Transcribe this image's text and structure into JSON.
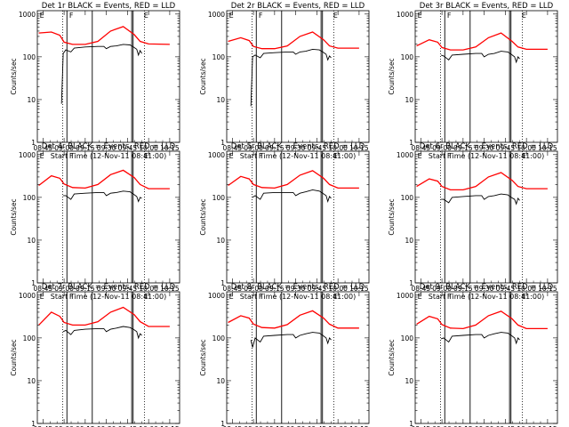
{
  "chart_data": {
    "type": "line",
    "shared": {
      "ylabel": "Counts/sec",
      "xlabel": "Start Time (12-Nov-11 08:41:00)",
      "x_tick_labels": [
        "08:45",
        "09:00",
        "09:15",
        "09:30",
        "09:45",
        "10:00",
        "10:15"
      ],
      "y_tick_labels": [
        "1",
        "10",
        "100",
        "1000"
      ],
      "y_scale": "log",
      "ylim": [
        1,
        1200
      ],
      "xlim": [
        "08:41",
        "10:22"
      ],
      "grid": false,
      "series_colors": {
        "events": "#000000",
        "lld": "#ff0000"
      },
      "markers": [
        {
          "label": "E",
          "time": "08:42"
        },
        {
          "label": "F",
          "time": "09:03"
        },
        {
          "label": "E",
          "time": "09:56"
        }
      ],
      "solid_vlines": [
        "09:02",
        "09:20",
        "09:48",
        "09:49"
      ],
      "dotted_vlines": [
        "08:59",
        "09:57"
      ]
    },
    "panels": [
      {
        "title": "Det 1r BLACK = Events, RED = LLD",
        "lld": [
          [
            8.7,
            360
          ],
          [
            8.85,
            380
          ],
          [
            8.95,
            320
          ],
          [
            9.0,
            220
          ],
          [
            9.1,
            195
          ],
          [
            9.25,
            195
          ],
          [
            9.4,
            230
          ],
          [
            9.55,
            400
          ],
          [
            9.7,
            510
          ],
          [
            9.83,
            330
          ],
          [
            9.9,
            230
          ],
          [
            10.0,
            200
          ],
          [
            10.25,
            195
          ]
        ],
        "events": [
          [
            8.97,
            8
          ],
          [
            8.99,
            120
          ],
          [
            9.02,
            145
          ],
          [
            9.08,
            130
          ],
          [
            9.12,
            160
          ],
          [
            9.25,
            170
          ],
          [
            9.4,
            175
          ],
          [
            9.47,
            175
          ],
          [
            9.5,
            155
          ],
          [
            9.55,
            175
          ],
          [
            9.62,
            180
          ],
          [
            9.7,
            195
          ],
          [
            9.78,
            190
          ],
          [
            9.82,
            170
          ],
          [
            9.86,
            150
          ],
          [
            9.88,
            110
          ],
          [
            9.9,
            140
          ],
          [
            9.92,
            120
          ]
        ]
      },
      {
        "title": "Det 2r BLACK = Events, RED = LLD",
        "lld": [
          [
            8.7,
            230
          ],
          [
            8.85,
            280
          ],
          [
            8.95,
            240
          ],
          [
            9.0,
            175
          ],
          [
            9.1,
            155
          ],
          [
            9.25,
            155
          ],
          [
            9.4,
            180
          ],
          [
            9.55,
            300
          ],
          [
            9.7,
            380
          ],
          [
            9.83,
            250
          ],
          [
            9.9,
            180
          ],
          [
            10.0,
            160
          ],
          [
            10.25,
            160
          ]
        ],
        "events": [
          [
            8.97,
            7
          ],
          [
            8.99,
            100
          ],
          [
            9.02,
            110
          ],
          [
            9.08,
            95
          ],
          [
            9.12,
            120
          ],
          [
            9.25,
            125
          ],
          [
            9.4,
            130
          ],
          [
            9.47,
            130
          ],
          [
            9.5,
            115
          ],
          [
            9.55,
            130
          ],
          [
            9.62,
            135
          ],
          [
            9.7,
            150
          ],
          [
            9.78,
            145
          ],
          [
            9.82,
            130
          ],
          [
            9.86,
            115
          ],
          [
            9.88,
            85
          ],
          [
            9.9,
            105
          ],
          [
            9.92,
            95
          ]
        ]
      },
      {
        "title": "Det 3r BLACK = Events, RED = LLD",
        "lld": [
          [
            8.7,
            180
          ],
          [
            8.85,
            250
          ],
          [
            8.95,
            220
          ],
          [
            9.0,
            165
          ],
          [
            9.1,
            145
          ],
          [
            9.25,
            145
          ],
          [
            9.4,
            170
          ],
          [
            9.55,
            280
          ],
          [
            9.7,
            360
          ],
          [
            9.83,
            230
          ],
          [
            9.9,
            170
          ],
          [
            10.0,
            150
          ],
          [
            10.25,
            150
          ]
        ],
        "events": [
          [
            8.99,
            110
          ],
          [
            9.02,
            105
          ],
          [
            9.08,
            85
          ],
          [
            9.12,
            110
          ],
          [
            9.25,
            115
          ],
          [
            9.4,
            120
          ],
          [
            9.47,
            120
          ],
          [
            9.5,
            100
          ],
          [
            9.55,
            115
          ],
          [
            9.62,
            120
          ],
          [
            9.7,
            135
          ],
          [
            9.78,
            130
          ],
          [
            9.82,
            115
          ],
          [
            9.86,
            100
          ],
          [
            9.88,
            75
          ],
          [
            9.9,
            100
          ],
          [
            9.92,
            90
          ]
        ]
      },
      {
        "title": "Det 4r BLACK = Events, RED = LLD",
        "lld": [
          [
            8.7,
            190
          ],
          [
            8.85,
            320
          ],
          [
            8.95,
            280
          ],
          [
            9.0,
            205
          ],
          [
            9.1,
            170
          ],
          [
            9.25,
            165
          ],
          [
            9.4,
            200
          ],
          [
            9.55,
            340
          ],
          [
            9.7,
            430
          ],
          [
            9.83,
            290
          ],
          [
            9.9,
            200
          ],
          [
            10.0,
            160
          ],
          [
            10.25,
            160
          ]
        ],
        "events": [
          [
            8.99,
            110
          ],
          [
            9.02,
            110
          ],
          [
            9.08,
            90
          ],
          [
            9.12,
            120
          ],
          [
            9.25,
            125
          ],
          [
            9.4,
            130
          ],
          [
            9.47,
            130
          ],
          [
            9.5,
            110
          ],
          [
            9.55,
            125
          ],
          [
            9.62,
            130
          ],
          [
            9.7,
            140
          ],
          [
            9.78,
            135
          ],
          [
            9.82,
            120
          ],
          [
            9.86,
            105
          ],
          [
            9.88,
            80
          ],
          [
            9.9,
            100
          ],
          [
            9.92,
            95
          ]
        ]
      },
      {
        "title": "Det 5r BLACK = Events, RED = LLD",
        "lld": [
          [
            8.7,
            190
          ],
          [
            8.85,
            310
          ],
          [
            8.95,
            270
          ],
          [
            9.0,
            200
          ],
          [
            9.1,
            170
          ],
          [
            9.25,
            165
          ],
          [
            9.4,
            200
          ],
          [
            9.55,
            330
          ],
          [
            9.7,
            420
          ],
          [
            9.83,
            280
          ],
          [
            9.9,
            200
          ],
          [
            10.0,
            165
          ],
          [
            10.25,
            165
          ]
        ],
        "events": [
          [
            8.99,
            100
          ],
          [
            9.02,
            110
          ],
          [
            9.08,
            90
          ],
          [
            9.12,
            125
          ],
          [
            9.25,
            130
          ],
          [
            9.4,
            130
          ],
          [
            9.47,
            130
          ],
          [
            9.5,
            110
          ],
          [
            9.55,
            125
          ],
          [
            9.62,
            135
          ],
          [
            9.7,
            150
          ],
          [
            9.78,
            140
          ],
          [
            9.82,
            125
          ],
          [
            9.86,
            110
          ],
          [
            9.88,
            80
          ],
          [
            9.9,
            105
          ],
          [
            9.92,
            95
          ]
        ]
      },
      {
        "title": "Det 6r BLACK = Events, RED = LLD",
        "lld": [
          [
            8.7,
            180
          ],
          [
            8.85,
            270
          ],
          [
            8.95,
            240
          ],
          [
            9.0,
            180
          ],
          [
            9.1,
            150
          ],
          [
            9.25,
            150
          ],
          [
            9.4,
            180
          ],
          [
            9.55,
            300
          ],
          [
            9.7,
            380
          ],
          [
            9.83,
            250
          ],
          [
            9.9,
            180
          ],
          [
            10.0,
            160
          ],
          [
            10.25,
            160
          ]
        ],
        "events": [
          [
            8.99,
            90
          ],
          [
            9.02,
            90
          ],
          [
            9.08,
            75
          ],
          [
            9.12,
            100
          ],
          [
            9.25,
            105
          ],
          [
            9.4,
            110
          ],
          [
            9.47,
            110
          ],
          [
            9.5,
            90
          ],
          [
            9.55,
            105
          ],
          [
            9.62,
            110
          ],
          [
            9.7,
            120
          ],
          [
            9.78,
            115
          ],
          [
            9.82,
            100
          ],
          [
            9.86,
            90
          ],
          [
            9.88,
            70
          ],
          [
            9.9,
            95
          ],
          [
            9.92,
            85
          ]
        ]
      },
      {
        "title": "Det 7r BLACK = Events, RED = LLD",
        "lld": [
          [
            8.7,
            200
          ],
          [
            8.85,
            400
          ],
          [
            8.95,
            320
          ],
          [
            9.0,
            230
          ],
          [
            9.1,
            200
          ],
          [
            9.25,
            200
          ],
          [
            9.4,
            240
          ],
          [
            9.55,
            400
          ],
          [
            9.7,
            520
          ],
          [
            9.83,
            350
          ],
          [
            9.9,
            240
          ],
          [
            10.0,
            185
          ],
          [
            10.25,
            185
          ]
        ],
        "events": [
          [
            8.99,
            140
          ],
          [
            9.02,
            150
          ],
          [
            9.08,
            120
          ],
          [
            9.12,
            150
          ],
          [
            9.25,
            160
          ],
          [
            9.4,
            165
          ],
          [
            9.47,
            165
          ],
          [
            9.5,
            140
          ],
          [
            9.55,
            160
          ],
          [
            9.62,
            170
          ],
          [
            9.7,
            185
          ],
          [
            9.78,
            175
          ],
          [
            9.82,
            160
          ],
          [
            9.86,
            140
          ],
          [
            9.88,
            100
          ],
          [
            9.9,
            125
          ],
          [
            9.92,
            115
          ]
        ]
      },
      {
        "title": "Det 8r BLACK = Events, RED = LLD",
        "lld": [
          [
            8.7,
            230
          ],
          [
            8.85,
            330
          ],
          [
            8.95,
            290
          ],
          [
            9.0,
            210
          ],
          [
            9.1,
            175
          ],
          [
            9.25,
            170
          ],
          [
            9.4,
            205
          ],
          [
            9.55,
            340
          ],
          [
            9.7,
            430
          ],
          [
            9.83,
            290
          ],
          [
            9.9,
            210
          ],
          [
            10.0,
            170
          ],
          [
            10.25,
            170
          ]
        ],
        "events": [
          [
            8.97,
            90
          ],
          [
            8.99,
            60
          ],
          [
            9.02,
            100
          ],
          [
            9.08,
            80
          ],
          [
            9.12,
            110
          ],
          [
            9.25,
            115
          ],
          [
            9.4,
            120
          ],
          [
            9.47,
            120
          ],
          [
            9.5,
            100
          ],
          [
            9.55,
            115
          ],
          [
            9.62,
            125
          ],
          [
            9.7,
            135
          ],
          [
            9.78,
            130
          ],
          [
            9.82,
            115
          ],
          [
            9.86,
            100
          ],
          [
            9.88,
            75
          ],
          [
            9.9,
            100
          ],
          [
            9.92,
            90
          ]
        ]
      },
      {
        "title": "Det 9r BLACK = Events, RED = LLD",
        "lld": [
          [
            8.7,
            210
          ],
          [
            8.85,
            320
          ],
          [
            8.95,
            280
          ],
          [
            9.0,
            205
          ],
          [
            9.1,
            170
          ],
          [
            9.25,
            165
          ],
          [
            9.4,
            200
          ],
          [
            9.55,
            330
          ],
          [
            9.7,
            420
          ],
          [
            9.83,
            280
          ],
          [
            9.9,
            200
          ],
          [
            10.0,
            165
          ],
          [
            10.25,
            165
          ]
        ],
        "events": [
          [
            8.99,
            95
          ],
          [
            9.02,
            100
          ],
          [
            9.08,
            80
          ],
          [
            9.12,
            110
          ],
          [
            9.25,
            115
          ],
          [
            9.4,
            120
          ],
          [
            9.47,
            120
          ],
          [
            9.5,
            100
          ],
          [
            9.55,
            115
          ],
          [
            9.62,
            125
          ],
          [
            9.7,
            135
          ],
          [
            9.78,
            130
          ],
          [
            9.82,
            115
          ],
          [
            9.86,
            100
          ],
          [
            9.88,
            75
          ],
          [
            9.9,
            100
          ],
          [
            9.92,
            90
          ]
        ]
      }
    ]
  }
}
